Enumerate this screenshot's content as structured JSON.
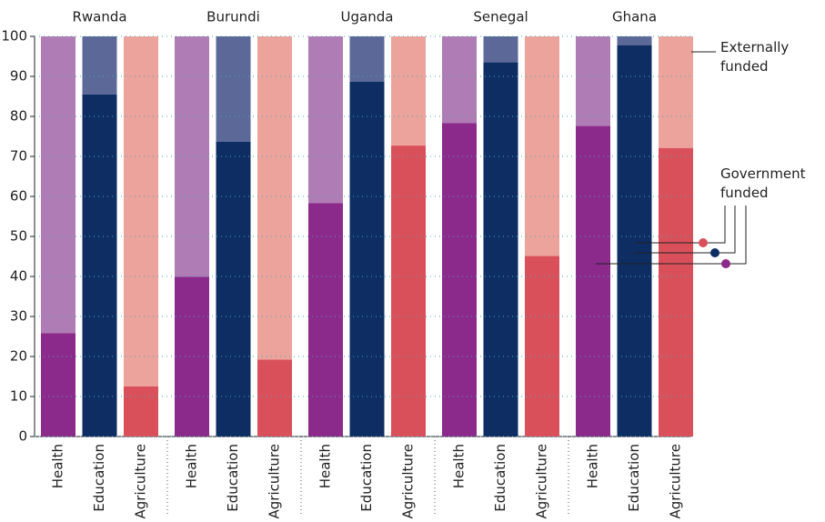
{
  "chart_data": {
    "type": "stacked_bar",
    "groups": [
      "Rwanda",
      "Burundi",
      "Uganda",
      "Senegal",
      "Ghana"
    ],
    "categories": [
      "Health",
      "Education",
      "Agriculture",
      "Health",
      "Education",
      "Agriculture",
      "Health",
      "Education",
      "Agriculture",
      "Health",
      "Education",
      "Agriculture",
      "Health",
      "Education",
      "Agriculture"
    ],
    "series": [
      {
        "name": "Government funded",
        "colors": [
          "#8b2a8b",
          "#0d2d63",
          "#d9505a"
        ],
        "values": [
          25.8,
          85.5,
          12.5,
          39.9,
          73.7,
          19.2,
          58.3,
          88.7,
          72.7,
          78.3,
          93.5,
          45.1,
          77.6,
          97.8,
          72.1
        ],
        "value_labels": [
          "25.8%",
          "85.5%",
          "12.5%",
          "39.9%",
          "73.7%",
          "19.2%",
          "58.3%",
          "88.7%",
          "72.7%",
          "78.3%",
          "93.5%",
          "45.1%",
          "77.6%",
          "97.8%",
          "72.1%"
        ]
      },
      {
        "name": "Externally funded",
        "colors": [
          "#b07cb5",
          "#5b6898",
          "#eca39b"
        ],
        "values": [
          74.2,
          14.5,
          87.5,
          60.1,
          26.3,
          80.8,
          41.7,
          11.3,
          27.3,
          21.7,
          6.5,
          54.9,
          22.4,
          2.2,
          27.9
        ],
        "value_labels": [
          "74.2%",
          "14.5%",
          "87.5%",
          "60.1%",
          "26.3%",
          "80.8%",
          "41.7%",
          "11.3%",
          "27.3%",
          "21.7%",
          "6.5%",
          "54.9%",
          "22.4%",
          "2.2%",
          "27.9%"
        ]
      }
    ],
    "ylim": [
      0,
      100
    ],
    "yticks": [
      0,
      10,
      20,
      30,
      40,
      50,
      60,
      70,
      80,
      90,
      100
    ],
    "grid": true
  }
}
